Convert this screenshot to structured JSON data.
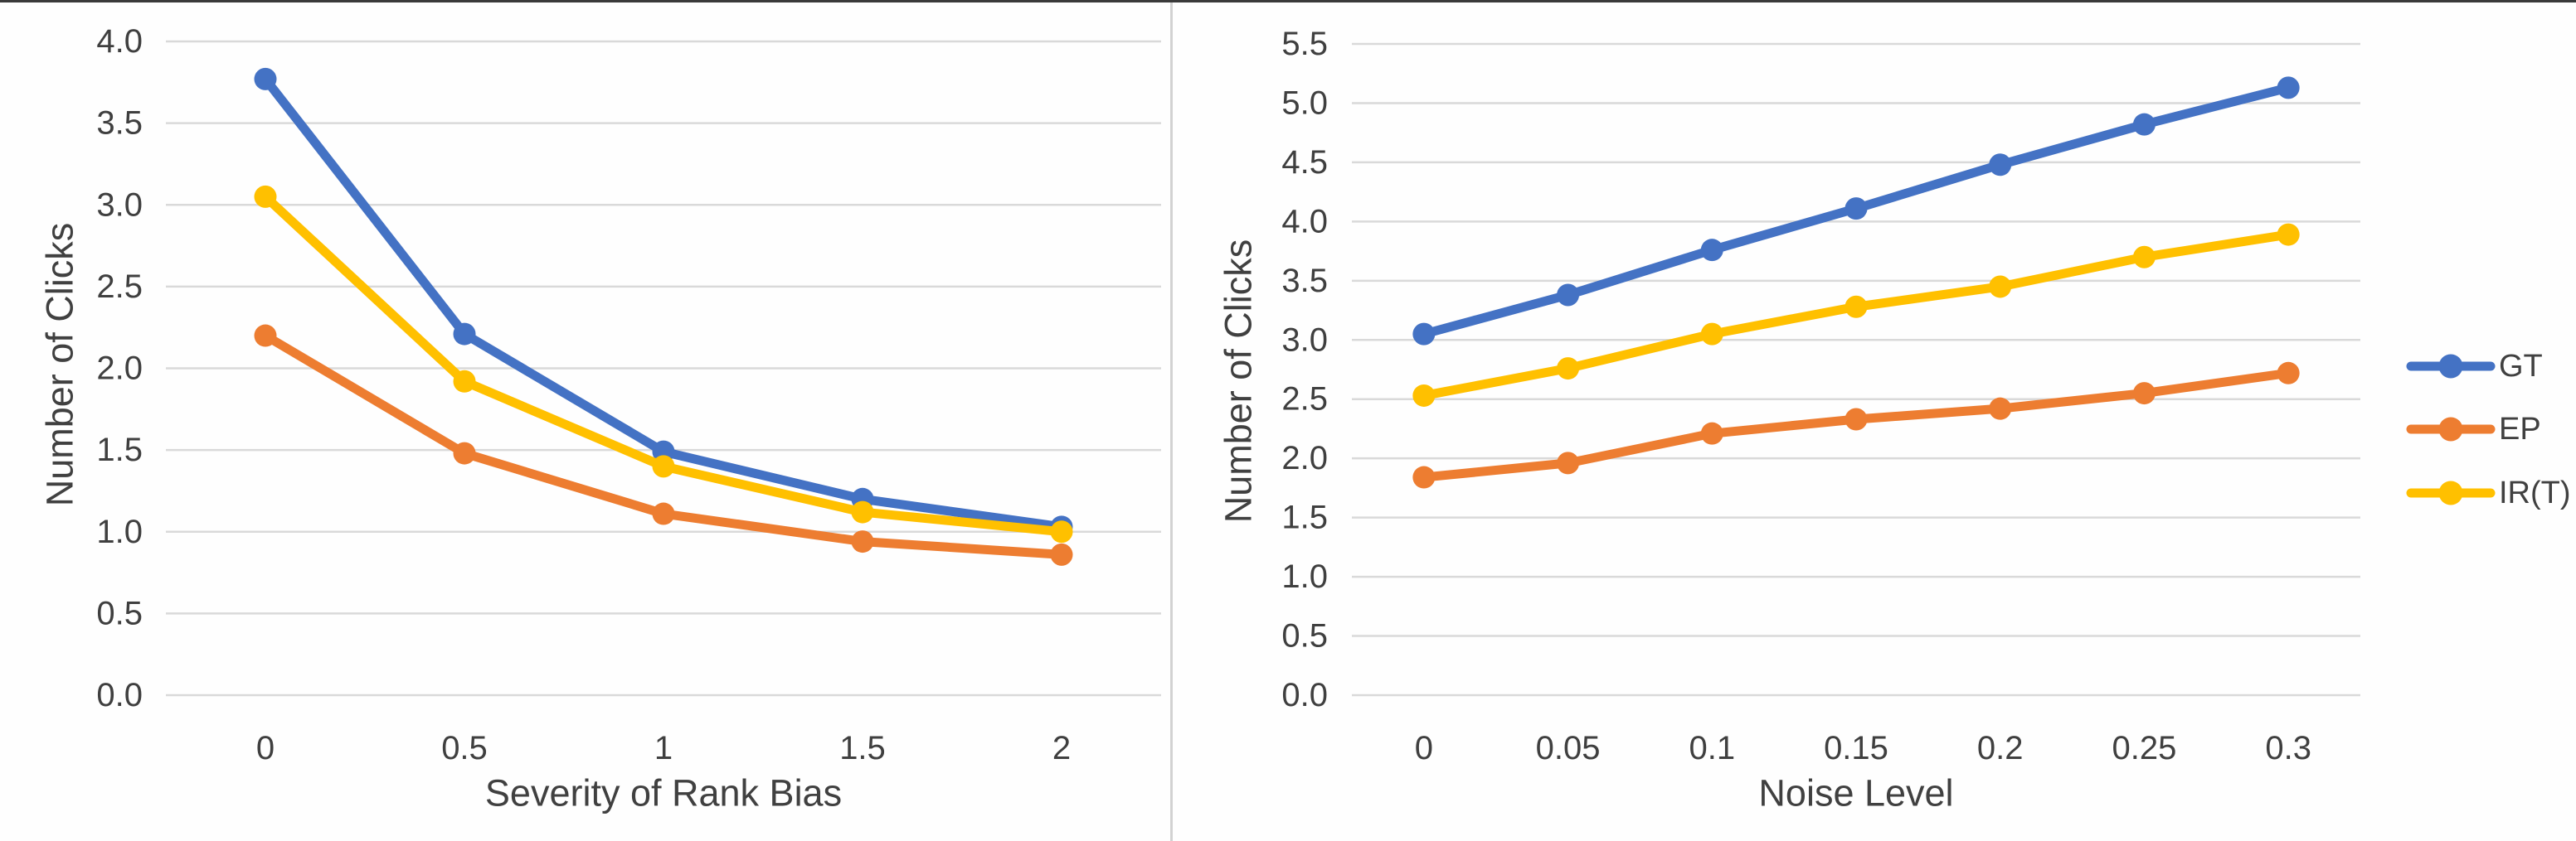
{
  "figure": {
    "description": "Two line charts comparing number of clicks",
    "background": "#FEFEFE",
    "top_border_color": "#3A3A3A",
    "divider_color": "#D2D2D2",
    "grid_color": "#D9D9D9",
    "tick_text_color": "#3F3F3F",
    "title_text_color": "#404040"
  },
  "legend": {
    "position": "right",
    "items": [
      {
        "label": "GT",
        "color": "#4472C4"
      },
      {
        "label": "EP",
        "color": "#ED7D31"
      },
      {
        "label": "IR(T)",
        "color": "#FFC000"
      }
    ]
  },
  "chart_data": [
    {
      "type": "line",
      "title": "",
      "xlabel": "Severity of Rank Bias",
      "ylabel": "Number of Clicks",
      "categories": [
        "0",
        "0.5",
        "1",
        "1.5",
        "2"
      ],
      "series": [
        {
          "name": "GT",
          "color": "#4472C4",
          "values": [
            3.77,
            2.21,
            1.49,
            1.2,
            1.03
          ]
        },
        {
          "name": "EP",
          "color": "#ED7D31",
          "values": [
            2.2,
            1.48,
            1.11,
            0.94,
            0.86
          ]
        },
        {
          "name": "IR(T)",
          "color": "#FFC000",
          "values": [
            3.05,
            1.92,
            1.4,
            1.12,
            1.0
          ]
        }
      ],
      "ylim": [
        0,
        4.0
      ],
      "ytick_step": 0.5,
      "ytick_decimals": 1,
      "grid": true,
      "legend": false
    },
    {
      "type": "line",
      "title": "",
      "xlabel": "Noise Level",
      "ylabel": "Number of Clicks",
      "categories": [
        "0",
        "0.05",
        "0.1",
        "0.15",
        "0.2",
        "0.25",
        "0.3"
      ],
      "series": [
        {
          "name": "GT",
          "color": "#4472C4",
          "values": [
            3.05,
            3.38,
            3.76,
            4.11,
            4.48,
            4.82,
            5.13
          ]
        },
        {
          "name": "EP",
          "color": "#ED7D31",
          "values": [
            1.84,
            1.96,
            2.21,
            2.33,
            2.42,
            2.55,
            2.72
          ]
        },
        {
          "name": "IR(T)",
          "color": "#FFC000",
          "values": [
            2.53,
            2.76,
            3.05,
            3.28,
            3.45,
            3.7,
            3.89
          ]
        }
      ],
      "ylim": [
        0,
        5.5
      ],
      "ytick_step": 0.5,
      "ytick_decimals": 1,
      "grid": true,
      "legend": true,
      "legend_position": "right"
    }
  ]
}
